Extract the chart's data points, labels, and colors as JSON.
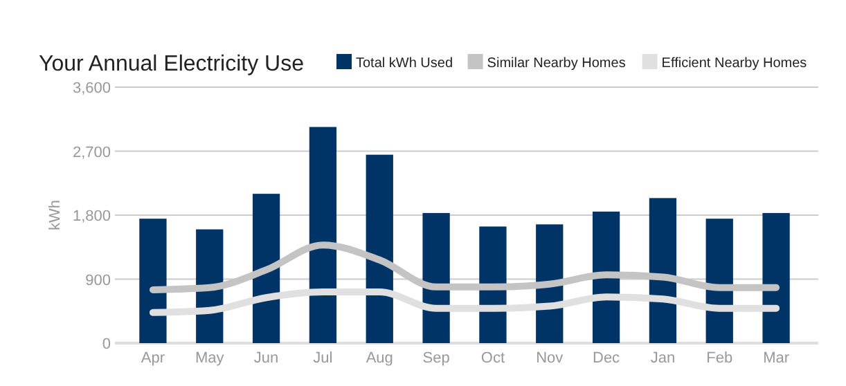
{
  "chart_data": {
    "type": "bar",
    "title": "Your Annual Electricity Use",
    "ylabel": "kWh",
    "categories": [
      "Apr",
      "May",
      "Jun",
      "Jul",
      "Aug",
      "Sep",
      "Oct",
      "Nov",
      "Dec",
      "Jan",
      "Feb",
      "Mar"
    ],
    "series": [
      {
        "name": "Total kWh Used",
        "color": "#003366",
        "values": [
          1750,
          1600,
          2100,
          3040,
          2650,
          1830,
          1640,
          1670,
          1850,
          2040,
          1750,
          1830
        ]
      },
      {
        "name": "Similar Nearby Homes",
        "color": "#c4c4c4",
        "type": "line",
        "values": [
          750,
          780,
          1030,
          1380,
          1170,
          790,
          790,
          830,
          960,
          930,
          780,
          780
        ]
      },
      {
        "name": "Efficient Nearby Homes",
        "color": "#e0e0e0",
        "type": "line",
        "values": [
          430,
          460,
          640,
          720,
          720,
          490,
          490,
          520,
          650,
          620,
          490,
          490
        ]
      }
    ],
    "ylim": [
      0,
      3600
    ],
    "yticks": [
      0,
      {
        "value": 900,
        "label": "900"
      },
      {
        "value": 1800,
        "label": "1,800"
      },
      {
        "value": 2700,
        "label": "2,700"
      },
      {
        "value": 3600,
        "label": "3,600"
      }
    ],
    "grid": "y",
    "legend": "top right"
  }
}
